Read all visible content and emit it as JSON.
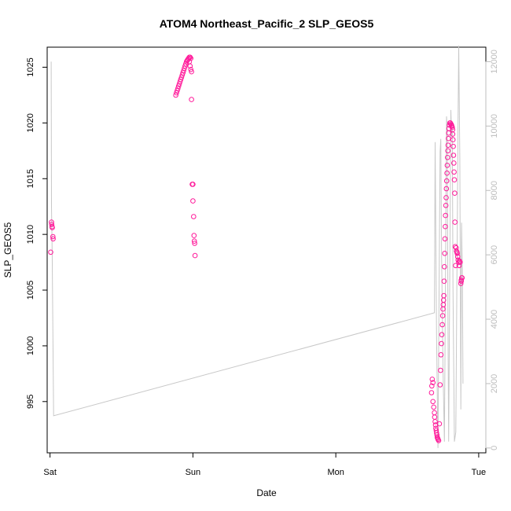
{
  "chart_data": {
    "type": "scatter",
    "title": "ATOM4 Northeast_Pacific_2 SLP_GEOS5",
    "xlabel": "Date",
    "ylabel": "SLP_GEOS5",
    "x_axis": {
      "unit": "days since Sat 00:00",
      "range": [
        -0.02,
        3.05
      ],
      "ticks": [
        {
          "value": 0,
          "label": "Sat"
        },
        {
          "value": 1,
          "label": "Sun"
        },
        {
          "value": 2,
          "label": "Mon"
        },
        {
          "value": 3,
          "label": "Tue"
        }
      ]
    },
    "y_left": {
      "range": [
        990.4,
        1026.8
      ],
      "ticks": [
        995,
        1000,
        1005,
        1010,
        1015,
        1020,
        1025
      ]
    },
    "y_right": {
      "range": [
        -150,
        12450
      ],
      "ticks": [
        0,
        2000,
        4000,
        6000,
        8000,
        10000,
        12000
      ],
      "color": "#bdbdbd"
    },
    "colors": {
      "points": "#ff1a9a",
      "secondary_line": "#c8c8c8"
    },
    "series": [
      {
        "name": "SLP_GEOS5",
        "axis": "left",
        "kind": "points",
        "points": [
          [
            0.01,
            1011.1
          ],
          [
            0.012,
            1010.9
          ],
          [
            0.014,
            1010.7
          ],
          [
            0.016,
            1010.6
          ],
          [
            0.02,
            1009.8
          ],
          [
            0.022,
            1009.6
          ],
          [
            0.005,
            1008.4
          ],
          [
            0.88,
            1022.5
          ],
          [
            0.885,
            1022.7
          ],
          [
            0.89,
            1022.9
          ],
          [
            0.895,
            1023.1
          ],
          [
            0.9,
            1023.3
          ],
          [
            0.905,
            1023.5
          ],
          [
            0.91,
            1023.7
          ],
          [
            0.915,
            1023.9
          ],
          [
            0.92,
            1024.1
          ],
          [
            0.925,
            1024.3
          ],
          [
            0.93,
            1024.5
          ],
          [
            0.935,
            1024.7
          ],
          [
            0.94,
            1024.9
          ],
          [
            0.945,
            1025.1
          ],
          [
            0.95,
            1025.3
          ],
          [
            0.955,
            1025.5
          ],
          [
            0.96,
            1025.6
          ],
          [
            0.965,
            1025.7
          ],
          [
            0.97,
            1025.8
          ],
          [
            0.975,
            1025.9
          ],
          [
            0.98,
            1025.9
          ],
          [
            0.985,
            1025.8
          ],
          [
            0.975,
            1025.5
          ],
          [
            0.98,
            1025.1
          ],
          [
            0.985,
            1024.8
          ],
          [
            0.99,
            1024.6
          ],
          [
            0.99,
            1022.1
          ],
          [
            0.995,
            1014.5
          ],
          [
            1.0,
            1014.5
          ],
          [
            1.0,
            1013.0
          ],
          [
            1.005,
            1011.6
          ],
          [
            1.008,
            1009.9
          ],
          [
            1.01,
            1009.4
          ],
          [
            1.012,
            1009.2
          ],
          [
            1.015,
            1008.1
          ],
          [
            2.675,
            997.0
          ],
          [
            2.68,
            996.7
          ],
          [
            2.672,
            996.4
          ],
          [
            2.67,
            995.8
          ],
          [
            2.68,
            995.0
          ],
          [
            2.685,
            994.5
          ],
          [
            2.69,
            994.0
          ],
          [
            2.692,
            993.6
          ],
          [
            2.695,
            993.2
          ],
          [
            2.698,
            992.9
          ],
          [
            2.7,
            992.6
          ],
          [
            2.703,
            992.4
          ],
          [
            2.705,
            992.2
          ],
          [
            2.708,
            992.0
          ],
          [
            2.71,
            991.8
          ],
          [
            2.713,
            991.7
          ],
          [
            2.716,
            991.6
          ],
          [
            2.72,
            991.5
          ],
          [
            2.725,
            993.0
          ],
          [
            2.73,
            996.5
          ],
          [
            2.733,
            997.8
          ],
          [
            2.736,
            999.2
          ],
          [
            2.739,
            1000.2
          ],
          [
            2.742,
            1001.0
          ],
          [
            2.745,
            1001.9
          ],
          [
            2.748,
            1002.7
          ],
          [
            2.75,
            1003.3
          ],
          [
            2.752,
            1003.7
          ],
          [
            2.754,
            1004.1
          ],
          [
            2.756,
            1004.5
          ],
          [
            2.758,
            1005.8
          ],
          [
            2.76,
            1007.1
          ],
          [
            2.762,
            1008.3
          ],
          [
            2.764,
            1009.6
          ],
          [
            2.766,
            1010.7
          ],
          [
            2.768,
            1011.7
          ],
          [
            2.77,
            1012.6
          ],
          [
            2.772,
            1013.3
          ],
          [
            2.774,
            1014.1
          ],
          [
            2.776,
            1014.8
          ],
          [
            2.778,
            1015.5
          ],
          [
            2.78,
            1016.2
          ],
          [
            2.782,
            1016.9
          ],
          [
            2.784,
            1017.5
          ],
          [
            2.786,
            1018.0
          ],
          [
            2.788,
            1018.6
          ],
          [
            2.79,
            1019.1
          ],
          [
            2.792,
            1019.5
          ],
          [
            2.795,
            1019.8
          ],
          [
            2.798,
            1020.0
          ],
          [
            2.802,
            1020.0
          ],
          [
            2.806,
            1019.9
          ],
          [
            2.81,
            1019.8
          ],
          [
            2.812,
            1019.7
          ],
          [
            2.815,
            1019.6
          ],
          [
            2.818,
            1019.4
          ],
          [
            2.818,
            1019.0
          ],
          [
            2.82,
            1018.5
          ],
          [
            2.822,
            1017.9
          ],
          [
            2.824,
            1017.1
          ],
          [
            2.826,
            1016.4
          ],
          [
            2.828,
            1015.6
          ],
          [
            2.83,
            1014.9
          ],
          [
            2.832,
            1013.7
          ],
          [
            2.834,
            1011.1
          ],
          [
            2.836,
            1008.9
          ],
          [
            2.838,
            1007.2
          ],
          [
            2.842,
            1008.8
          ],
          [
            2.845,
            1008.5
          ],
          [
            2.848,
            1008.4
          ],
          [
            2.85,
            1008.3
          ],
          [
            2.853,
            1008.0
          ],
          [
            2.856,
            1007.7
          ],
          [
            2.86,
            1007.5
          ],
          [
            2.863,
            1007.2
          ],
          [
            2.866,
            1007.6
          ],
          [
            2.87,
            1007.5
          ],
          [
            2.875,
            1005.6
          ],
          [
            2.878,
            1005.9
          ],
          [
            2.881,
            1006.1
          ],
          [
            2.884,
            1006.1
          ],
          [
            2.878,
            1005.8
          ]
        ]
      },
      {
        "name": "",
        "axis": "right",
        "kind": "line",
        "points": [
          [
            0.008,
            12000
          ],
          [
            0.01,
            7500
          ],
          [
            0.015,
            6000
          ],
          [
            0.025,
            1000
          ],
          [
            2.69,
            4200
          ],
          [
            2.695,
            9500
          ],
          [
            2.705,
            3500
          ],
          [
            2.715,
            0
          ],
          [
            2.73,
            9200
          ],
          [
            2.735,
            9600
          ],
          [
            2.74,
            6000
          ],
          [
            2.75,
            2500
          ],
          [
            2.76,
            200
          ],
          [
            2.775,
            10300
          ],
          [
            2.78,
            9800
          ],
          [
            2.785,
            4000
          ],
          [
            2.79,
            200
          ],
          [
            2.805,
            10500
          ],
          [
            2.81,
            9700
          ],
          [
            2.815,
            9900
          ],
          [
            2.82,
            5000
          ],
          [
            2.83,
            200
          ],
          [
            2.84,
            500
          ],
          [
            2.855,
            10000
          ],
          [
            2.86,
            12500
          ],
          [
            2.868,
            9000
          ],
          [
            2.875,
            1200
          ],
          [
            2.88,
            7000
          ],
          [
            2.886,
            5200
          ],
          [
            2.89,
            2000
          ]
        ]
      }
    ]
  }
}
